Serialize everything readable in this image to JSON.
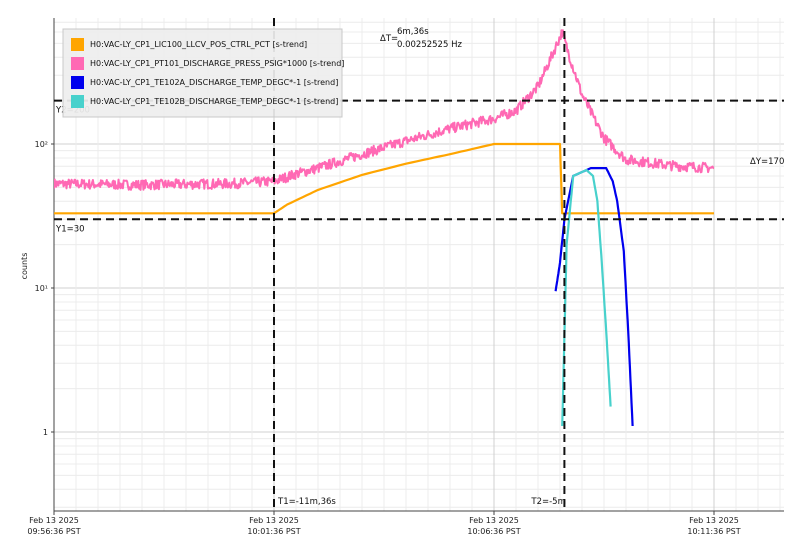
{
  "chart_data": {
    "type": "line",
    "y_scale": "log",
    "ylabel": "counts",
    "y_ticks": [
      {
        "value": 1,
        "label": "1"
      },
      {
        "value": 10,
        "label": "10¹"
      },
      {
        "value": 100,
        "label": "10²"
      }
    ],
    "x_ticks": [
      {
        "minute": 0,
        "line1": "Feb 13 2025",
        "line2": "09:56:36 PST"
      },
      {
        "minute": 5,
        "line1": "Feb 13 2025",
        "line2": "10:01:36 PST"
      },
      {
        "minute": 10,
        "line1": "Feb 13 2025",
        "line2": "10:06:36 PST"
      },
      {
        "minute": 15,
        "line1": "Feb 13 2025",
        "line2": "10:11:36 PST"
      }
    ],
    "legend": "top-left",
    "grid": true,
    "series": [
      {
        "name": "H0:VAC-LY_CP1_LIC100_LLCV_POS_CTRL_PCT [s-trend]",
        "color": "#FFA500",
        "points": [
          [
            0,
            33
          ],
          [
            5,
            33
          ],
          [
            5.3,
            38
          ],
          [
            6,
            48
          ],
          [
            7,
            61
          ],
          [
            8,
            73
          ],
          [
            9,
            85
          ],
          [
            10,
            100
          ],
          [
            11.5,
            100
          ],
          [
            11.55,
            33
          ],
          [
            15,
            33
          ]
        ]
      },
      {
        "name": "H0:VAC-LY_CP1_PT101_DISCHARGE_PRESS_PSIG*1000 [s-trend]",
        "color": "#FF69B4",
        "points": [
          [
            0,
            53
          ],
          [
            2,
            52
          ],
          [
            4,
            53
          ],
          [
            5,
            55
          ],
          [
            5.5,
            62
          ],
          [
            6,
            68
          ],
          [
            7,
            85
          ],
          [
            8,
            105
          ],
          [
            9,
            128
          ],
          [
            10,
            150
          ],
          [
            10.5,
            170
          ],
          [
            11,
            250
          ],
          [
            11.3,
            400
          ],
          [
            11.55,
            600
          ],
          [
            11.7,
            420
          ],
          [
            12,
            220
          ],
          [
            12.5,
            110
          ],
          [
            13,
            78
          ],
          [
            14,
            71
          ],
          [
            15,
            68
          ]
        ]
      },
      {
        "name": "H0:VAC-LY_CP1_TE102A_DISCHARGE_TEMP_DEGC*-1 [s-trend]",
        "color": "#0000EE",
        "points": [
          [
            11.4,
            9.5
          ],
          [
            11.5,
            15
          ],
          [
            11.6,
            30
          ],
          [
            11.8,
            60
          ],
          [
            12.2,
            68
          ],
          [
            12.55,
            68
          ],
          [
            12.7,
            55
          ],
          [
            12.8,
            40
          ],
          [
            12.95,
            18
          ],
          [
            13.05,
            5
          ],
          [
            13.15,
            1.1
          ]
        ]
      },
      {
        "name": "H0:VAC-LY_CP1_TE102B_DISCHARGE_TEMP_DEGC*-1 [s-trend]",
        "color": "#48D1CC",
        "points": [
          [
            11.55,
            1.1
          ],
          [
            11.65,
            20
          ],
          [
            11.8,
            60
          ],
          [
            12.1,
            66
          ],
          [
            12.25,
            60
          ],
          [
            12.35,
            40
          ],
          [
            12.45,
            15
          ],
          [
            12.55,
            5
          ],
          [
            12.65,
            1.5
          ]
        ]
      }
    ],
    "cursors": {
      "y1_label": "Y1=30",
      "y2_label": "Y2=200",
      "t1_label": "T1=-11m,36s",
      "t2_label": "T2=-5m",
      "dt_label": "ΔT=",
      "dt_value": "6m,36s",
      "dt_freq": "0.00252525 Hz",
      "dy_label": "ΔY=170",
      "y1_value": 30,
      "y2_value": 200,
      "t1_minute": 5,
      "t2_minute": 11.6
    }
  }
}
